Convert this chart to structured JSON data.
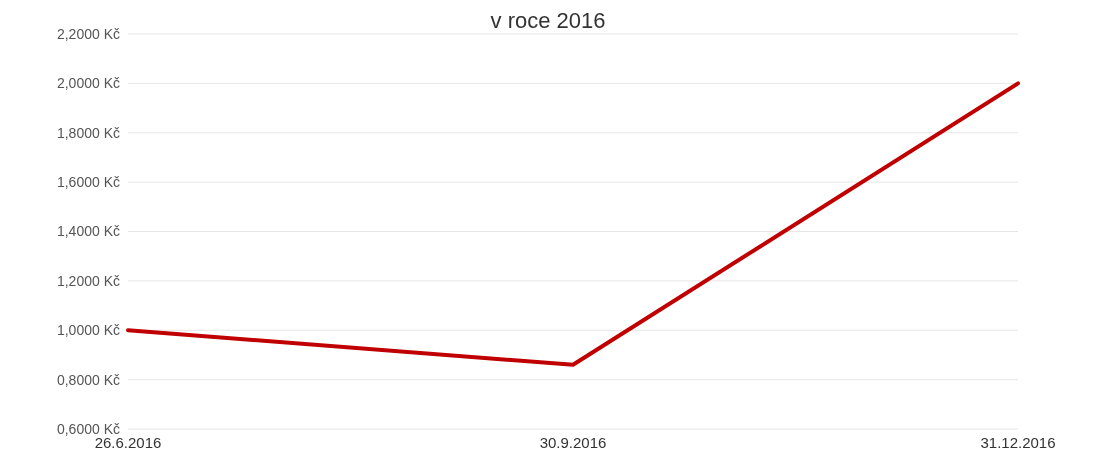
{
  "chart_data": {
    "type": "line",
    "title": "v roce 2016",
    "categories": [
      "26.6.2016",
      "30.9.2016",
      "31.12.2016"
    ],
    "series": [
      {
        "color": "#c00000",
        "values": [
          1.0,
          0.86,
          2.0
        ]
      }
    ],
    "ylim": [
      0.6,
      2.2
    ],
    "yticks": [
      {
        "value": 0.6,
        "label": "0,6000 Kč"
      },
      {
        "value": 0.8,
        "label": "0,8000 Kč"
      },
      {
        "value": 1.0,
        "label": "1,0000 Kč"
      },
      {
        "value": 1.2,
        "label": "1,2000 Kč"
      },
      {
        "value": 1.4,
        "label": "1,4000 Kč"
      },
      {
        "value": 1.6,
        "label": "1,6000 Kč"
      },
      {
        "value": 1.8,
        "label": "1,8000 Kč"
      },
      {
        "value": 2.0,
        "label": "2,0000 Kč"
      },
      {
        "value": 2.2,
        "label": "2,2000 Kč"
      }
    ],
    "grid": "y",
    "marker": "none",
    "line_style": "solid"
  }
}
